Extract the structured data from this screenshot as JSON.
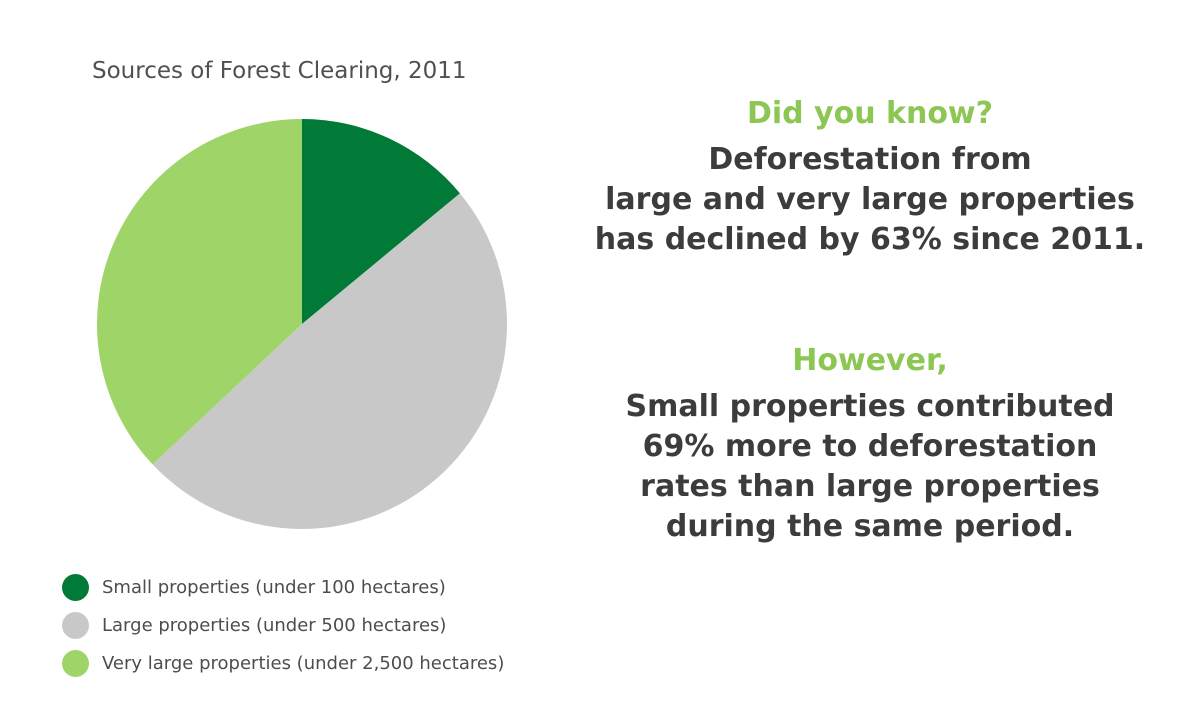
{
  "chart_data": {
    "type": "pie",
    "title": "Sources of Forest Clearing, 2011",
    "legend_position": "bottom-left",
    "start_angle_deg": 0,
    "direction": "clockwise",
    "slices": [
      {
        "label": "Small properties (under 100 hectares)",
        "value": 14,
        "color": "#017a37"
      },
      {
        "label": "Large properties (under 500 hectares)",
        "value": 49,
        "color": "#c8c8c8"
      },
      {
        "label": "Very large properties (under 2,500 hectares)",
        "value": 37,
        "color": "#9fd468"
      }
    ]
  },
  "info": {
    "accent_color": "#8cc653",
    "text_color": "#3c3c3c",
    "block1": {
      "heading": "Did you know?",
      "lines": [
        "Deforestation from",
        "large and very large properties",
        "has declined by 63% since 2011."
      ]
    },
    "block2": {
      "heading": "However,",
      "lines": [
        "Small properties contributed",
        "69% more to deforestation",
        "rates than large properties",
        "during the same period."
      ]
    }
  }
}
